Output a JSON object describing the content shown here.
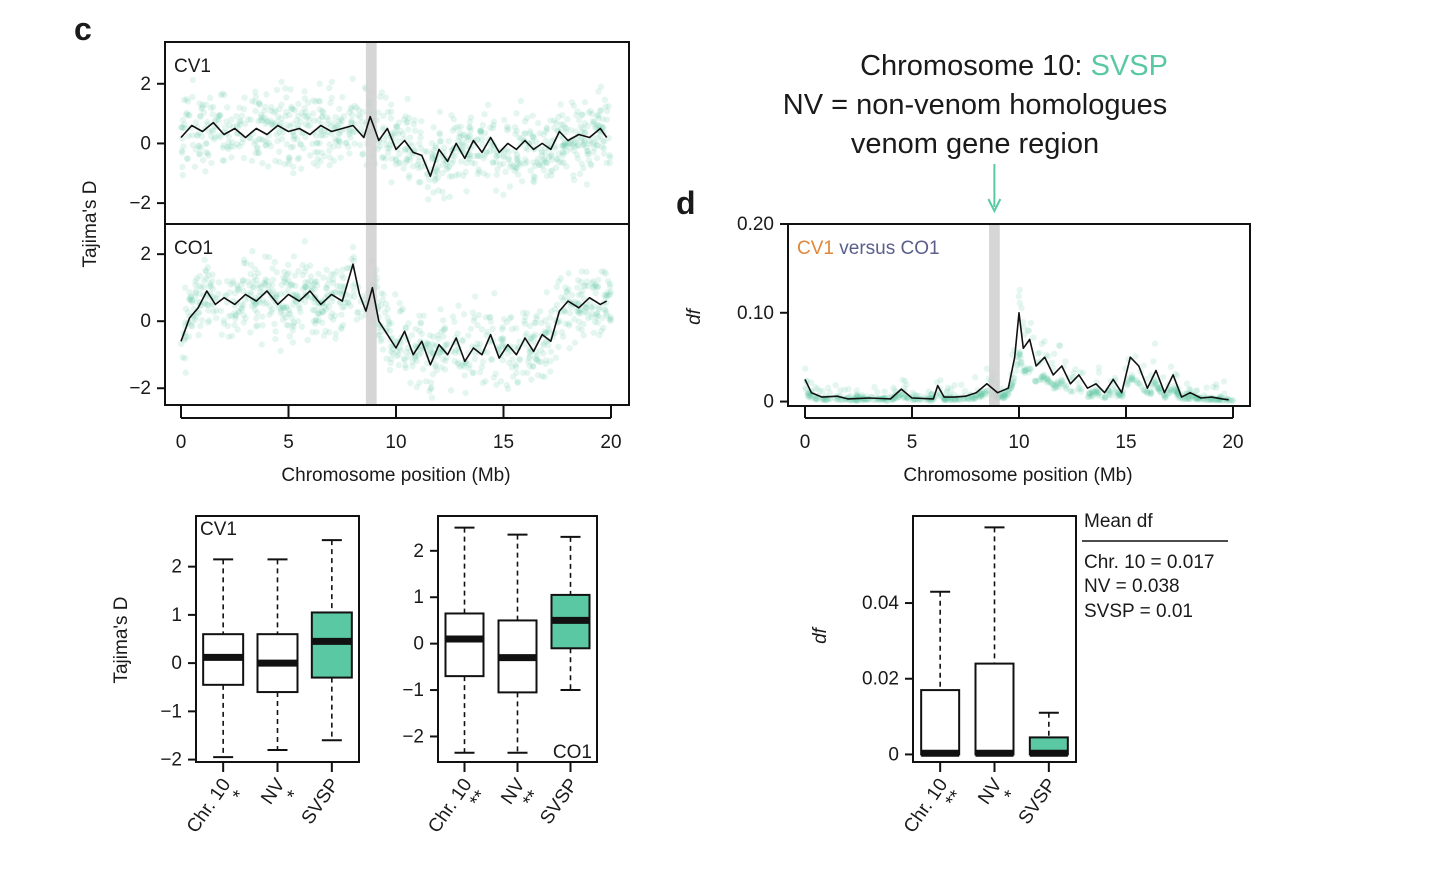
{
  "colors": {
    "cv1": "#e0873a",
    "co1": "#5a5f8c",
    "svsp": "#5bc8a4",
    "highlight": "#cfcfcf",
    "text": "#1a1a1a"
  },
  "panel_labels": {
    "c": "c",
    "d": "d"
  },
  "annotation": {
    "line1_prefix": "Chromosome 10: ",
    "line1_svsp": "SVSP",
    "line2": "NV = non-venom homologues",
    "line3": "venom gene region"
  },
  "chart_data": [
    {
      "id": "c-top",
      "type": "scatter",
      "label": "CV1",
      "ylabel": "Tajima's D",
      "xlim": [
        0,
        20
      ],
      "ylim": [
        -2.7,
        3.4
      ],
      "yticks": [
        -2,
        0,
        2
      ],
      "xticks": [
        0,
        5,
        10,
        15,
        20
      ],
      "highlight_region": [
        8.6,
        9.1
      ],
      "window_mean": [
        [
          0,
          0.2
        ],
        [
          0.5,
          0.6
        ],
        [
          1,
          0.4
        ],
        [
          1.5,
          0.7
        ],
        [
          2,
          0.3
        ],
        [
          2.5,
          0.5
        ],
        [
          3,
          0.2
        ],
        [
          3.5,
          0.5
        ],
        [
          4,
          0.3
        ],
        [
          4.5,
          0.6
        ],
        [
          5,
          0.4
        ],
        [
          5.5,
          0.5
        ],
        [
          6,
          0.3
        ],
        [
          6.5,
          0.6
        ],
        [
          7,
          0.4
        ],
        [
          7.5,
          0.5
        ],
        [
          8,
          0.6
        ],
        [
          8.5,
          0.2
        ],
        [
          8.8,
          0.9
        ],
        [
          9.2,
          0.1
        ],
        [
          9.6,
          0.5
        ],
        [
          10,
          -0.2
        ],
        [
          10.4,
          0.1
        ],
        [
          10.8,
          -0.3
        ],
        [
          11.2,
          -0.4
        ],
        [
          11.6,
          -1.1
        ],
        [
          12,
          -0.2
        ],
        [
          12.4,
          -0.6
        ],
        [
          12.8,
          0.0
        ],
        [
          13.2,
          -0.5
        ],
        [
          13.6,
          0.1
        ],
        [
          14,
          -0.3
        ],
        [
          14.4,
          0.2
        ],
        [
          14.8,
          -0.3
        ],
        [
          15.2,
          0.0
        ],
        [
          15.6,
          -0.2
        ],
        [
          16,
          0.1
        ],
        [
          16.4,
          -0.2
        ],
        [
          16.8,
          0.0
        ],
        [
          17.2,
          -0.2
        ],
        [
          17.6,
          0.4
        ],
        [
          18,
          0.1
        ],
        [
          18.5,
          0.3
        ],
        [
          19,
          0.2
        ],
        [
          19.5,
          0.5
        ],
        [
          19.8,
          0.2
        ]
      ]
    },
    {
      "id": "c-middle",
      "type": "scatter",
      "label": "CO1",
      "ylabel": "Tajima's D",
      "xlim": [
        0,
        20
      ],
      "ylim": [
        -2.5,
        2.9
      ],
      "yticks": [
        -2,
        0,
        2
      ],
      "xticks": [
        0,
        5,
        10,
        15,
        20
      ],
      "xlabel": "Chromosome position (Mb)",
      "highlight_region": [
        8.6,
        9.1
      ],
      "window_mean": [
        [
          0,
          -0.6
        ],
        [
          0.4,
          0.1
        ],
        [
          0.8,
          0.4
        ],
        [
          1.2,
          0.9
        ],
        [
          1.6,
          0.5
        ],
        [
          2,
          0.7
        ],
        [
          2.5,
          0.5
        ],
        [
          3,
          0.8
        ],
        [
          3.5,
          0.6
        ],
        [
          4,
          0.9
        ],
        [
          4.5,
          0.5
        ],
        [
          5,
          0.8
        ],
        [
          5.5,
          0.6
        ],
        [
          6,
          0.9
        ],
        [
          6.5,
          0.5
        ],
        [
          7,
          0.8
        ],
        [
          7.5,
          0.6
        ],
        [
          8,
          1.7
        ],
        [
          8.3,
          0.8
        ],
        [
          8.6,
          0.3
        ],
        [
          8.9,
          1.0
        ],
        [
          9.2,
          0.0
        ],
        [
          9.6,
          -0.4
        ],
        [
          10,
          -0.8
        ],
        [
          10.4,
          -0.3
        ],
        [
          10.8,
          -1.0
        ],
        [
          11.2,
          -0.6
        ],
        [
          11.6,
          -1.3
        ],
        [
          12,
          -0.7
        ],
        [
          12.4,
          -1.0
        ],
        [
          12.8,
          -0.5
        ],
        [
          13.2,
          -1.2
        ],
        [
          13.6,
          -0.8
        ],
        [
          14,
          -1.0
        ],
        [
          14.4,
          -0.4
        ],
        [
          14.8,
          -1.1
        ],
        [
          15.2,
          -0.7
        ],
        [
          15.6,
          -1.0
        ],
        [
          16,
          -0.5
        ],
        [
          16.4,
          -0.9
        ],
        [
          16.8,
          -0.4
        ],
        [
          17.2,
          -0.6
        ],
        [
          17.6,
          0.3
        ],
        [
          18,
          0.6
        ],
        [
          18.5,
          0.4
        ],
        [
          19,
          0.7
        ],
        [
          19.5,
          0.5
        ],
        [
          19.8,
          0.6
        ]
      ]
    },
    {
      "id": "d-top",
      "type": "scatter",
      "label_left": "CV1",
      "label_right": " versus CO1",
      "ylabel": "df",
      "xlim": [
        0,
        20
      ],
      "ylim": [
        -0.005,
        0.2
      ],
      "yticks": [
        0,
        0.1,
        0.2
      ],
      "ytick_labels": [
        "0",
        "0.10",
        "0.20"
      ],
      "xticks": [
        0,
        5,
        10,
        15,
        20
      ],
      "xlabel": "Chromosome position (Mb)",
      "highlight_region": [
        8.6,
        9.1
      ],
      "window_mean": [
        [
          0,
          0.025
        ],
        [
          0.3,
          0.01
        ],
        [
          0.8,
          0.005
        ],
        [
          1.5,
          0.006
        ],
        [
          2,
          0.003
        ],
        [
          3,
          0.004
        ],
        [
          4,
          0.003
        ],
        [
          4.5,
          0.014
        ],
        [
          5,
          0.004
        ],
        [
          6,
          0.003
        ],
        [
          6.2,
          0.018
        ],
        [
          6.5,
          0.005
        ],
        [
          7,
          0.005
        ],
        [
          7.5,
          0.006
        ],
        [
          8,
          0.01
        ],
        [
          8.5,
          0.02
        ],
        [
          9,
          0.01
        ],
        [
          9.5,
          0.015
        ],
        [
          9.8,
          0.05
        ],
        [
          10,
          0.1
        ],
        [
          10.2,
          0.06
        ],
        [
          10.5,
          0.07
        ],
        [
          10.8,
          0.04
        ],
        [
          11.2,
          0.05
        ],
        [
          11.6,
          0.03
        ],
        [
          12,
          0.04
        ],
        [
          12.4,
          0.02
        ],
        [
          12.8,
          0.03
        ],
        [
          13.2,
          0.015
        ],
        [
          13.6,
          0.02
        ],
        [
          14,
          0.01
        ],
        [
          14.4,
          0.025
        ],
        [
          14.8,
          0.01
        ],
        [
          15.2,
          0.05
        ],
        [
          15.6,
          0.04
        ],
        [
          16,
          0.015
        ],
        [
          16.4,
          0.035
        ],
        [
          16.8,
          0.01
        ],
        [
          17.2,
          0.03
        ],
        [
          17.6,
          0.005
        ],
        [
          18,
          0.01
        ],
        [
          18.5,
          0.004
        ],
        [
          19,
          0.005
        ],
        [
          19.5,
          0.003
        ],
        [
          19.8,
          0.002
        ]
      ]
    },
    {
      "id": "c-box-cv1",
      "type": "box",
      "label": "CV1",
      "ylabel": "Tajima's D",
      "ylim": [
        -2.05,
        3.05
      ],
      "yticks": [
        -2,
        -1,
        0,
        1,
        2
      ],
      "categories": [
        "Chr. 10",
        "NV",
        "SVSP"
      ],
      "significance": [
        "*",
        "*",
        ""
      ],
      "boxes": [
        {
          "min": -1.95,
          "q1": -0.45,
          "median": 0.12,
          "q3": 0.6,
          "max": 2.15,
          "fill": "#ffffff"
        },
        {
          "min": -1.8,
          "q1": -0.6,
          "median": 0.0,
          "q3": 0.6,
          "max": 2.15,
          "fill": "#ffffff"
        },
        {
          "min": -1.6,
          "q1": -0.3,
          "median": 0.45,
          "q3": 1.05,
          "max": 2.55,
          "fill": "#5bc8a4"
        }
      ]
    },
    {
      "id": "c-box-co1",
      "type": "box",
      "label": "CO1",
      "ylim": [
        -2.55,
        2.75
      ],
      "yticks": [
        -2,
        -1,
        0,
        1,
        2
      ],
      "categories": [
        "Chr. 10",
        "NV",
        "SVSP"
      ],
      "significance": [
        "**",
        "**",
        ""
      ],
      "boxes": [
        {
          "min": -2.35,
          "q1": -0.7,
          "median": 0.1,
          "q3": 0.65,
          "max": 2.5,
          "fill": "#ffffff"
        },
        {
          "min": -2.35,
          "q1": -1.05,
          "median": -0.3,
          "q3": 0.5,
          "max": 2.35,
          "fill": "#ffffff"
        },
        {
          "min": -1.0,
          "q1": -0.1,
          "median": 0.5,
          "q3": 1.05,
          "max": 2.3,
          "fill": "#5bc8a4"
        }
      ]
    },
    {
      "id": "d-box",
      "type": "box",
      "ylabel": "df",
      "ylim": [
        -0.002,
        0.063
      ],
      "yticks": [
        0,
        0.02,
        0.04
      ],
      "ytick_labels": [
        "0",
        "0.02",
        "0.04"
      ],
      "categories": [
        "Chr. 10",
        "NV",
        "SVSP"
      ],
      "significance": [
        "**",
        "*",
        ""
      ],
      "boxes": [
        {
          "min": 0.0,
          "q1": 0.0,
          "median": 0.0003,
          "q3": 0.017,
          "max": 0.043,
          "fill": "#ffffff"
        },
        {
          "min": 0.0,
          "q1": 0.0,
          "median": 0.0003,
          "q3": 0.024,
          "max": 0.06,
          "fill": "#ffffff"
        },
        {
          "min": 0.0,
          "q1": 0.0,
          "median": 0.0003,
          "q3": 0.0045,
          "max": 0.011,
          "fill": "#5bc8a4"
        }
      ]
    }
  ],
  "mean_df_table": {
    "header": "Mean df",
    "rows": [
      "Chr. 10 = 0.017",
      "NV = 0.038",
      "SVSP = 0.01"
    ]
  }
}
